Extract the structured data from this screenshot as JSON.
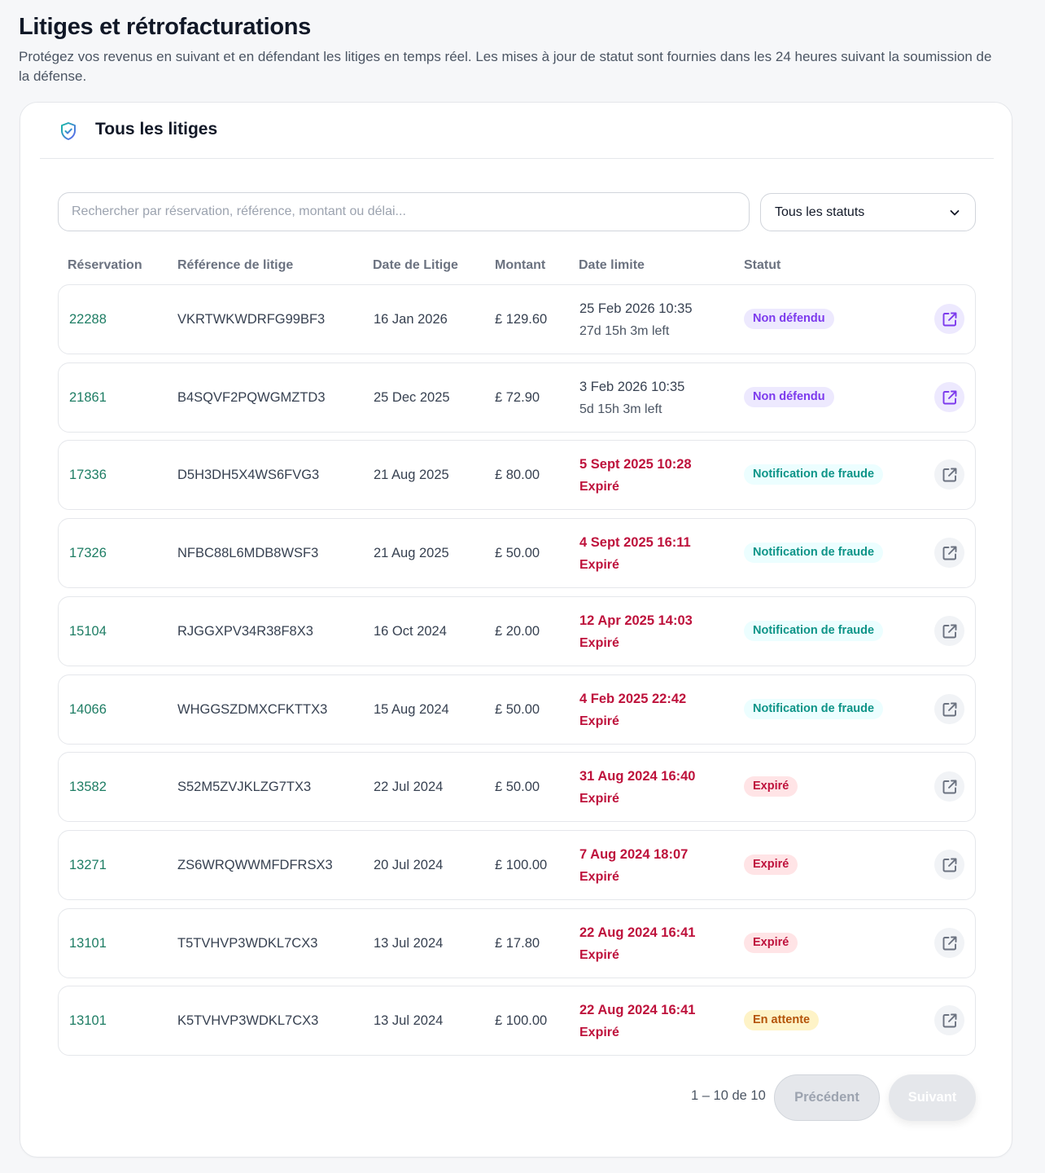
{
  "page": {
    "title": "Litiges et rétrofacturations",
    "subtitle": "Protégez vos revenus en suivant et en défendant les litiges en temps réel. Les mises à jour de statut sont fournies dans les 24 heures suivant la soumission de la défense."
  },
  "card": {
    "title": "Tous les litiges",
    "icon": "shield-check-icon"
  },
  "search": {
    "placeholder": "Rechercher par réservation, référence, montant ou délai..."
  },
  "filter": {
    "selected": "Tous les statuts"
  },
  "columns": {
    "reservation": "Réservation",
    "reference": "Référence de litige",
    "date": "Date de Litige",
    "amount": "Montant",
    "deadline": "Date limite",
    "status": "Statut"
  },
  "rows": [
    {
      "reservation": "22288",
      "reference": "VKRTWKWDRFG99BF3",
      "date": "16 Jan 2026",
      "amount": "£ 129.60",
      "deadline": "25 Feb 2026 10:35",
      "remaining": "27d 15h 3m left",
      "status": "Non défendu"
    },
    {
      "reservation": "21861",
      "reference": "B4SQVF2PQWGMZTD3",
      "date": "25 Dec 2025",
      "amount": "£ 72.90",
      "deadline": "3 Feb 2026 10:35",
      "remaining": "5d 15h 3m left",
      "status": "Non défendu"
    },
    {
      "reservation": "17336",
      "reference": "D5H3DH5X4WS6FVG3",
      "date": "21 Aug 2025",
      "amount": "£ 80.00",
      "deadline": "5 Sept 2025 10:28",
      "remaining": "Expiré",
      "status": "Notification de fraude"
    },
    {
      "reservation": "17326",
      "reference": "NFBC88L6MDB8WSF3",
      "date": "21 Aug 2025",
      "amount": "£ 50.00",
      "deadline": "4 Sept 2025 16:11",
      "remaining": "Expiré",
      "status": "Notification de fraude"
    },
    {
      "reservation": "15104",
      "reference": "RJGGXPV34R38F8X3",
      "date": "16 Oct 2024",
      "amount": "£ 20.00",
      "deadline": "12 Apr 2025 14:03",
      "remaining": "Expiré",
      "status": "Notification de fraude"
    },
    {
      "reservation": "14066",
      "reference": "WHGGSZDMXCFKTTX3",
      "date": "15 Aug 2024",
      "amount": "£ 50.00",
      "deadline": "4 Feb 2025 22:42",
      "remaining": "Expiré",
      "status": "Notification de fraude"
    },
    {
      "reservation": "13582",
      "reference": "S52M5ZVJKLZG7TX3",
      "date": "22 Jul 2024",
      "amount": "£ 50.00",
      "deadline": "31 Aug 2024 16:40",
      "remaining": "Expiré",
      "status": "Expiré"
    },
    {
      "reservation": "13271",
      "reference": "ZS6WRQWWMFDFRSX3",
      "date": "20 Jul 2024",
      "amount": "£ 100.00",
      "deadline": "7 Aug 2024 18:07",
      "remaining": "Expiré",
      "status": "Expiré"
    },
    {
      "reservation": "13101",
      "reference": "T5TVHVP3WDKL7CX3",
      "date": "13 Jul 2024",
      "amount": "£ 17.80",
      "deadline": "22 Aug 2024 16:41",
      "remaining": "Expiré",
      "status": "Expiré"
    },
    {
      "reservation": "13101",
      "reference": "K5TVHVP3WDKL7CX3",
      "date": "13 Jul 2024",
      "amount": "£ 100.00",
      "deadline": "22 Aug 2024 16:41",
      "remaining": "Expiré",
      "status": "En attente"
    }
  ],
  "pagination": {
    "info": "1 – 10 de 10",
    "prev_label": "Précédent",
    "next_label": "Suivant"
  },
  "colors": {
    "accent_green": "#1e7d64",
    "expired_red": "#be123c",
    "badge_purple": "#7c3aed",
    "badge_teal": "#0d9488",
    "badge_amber": "#b45309"
  }
}
